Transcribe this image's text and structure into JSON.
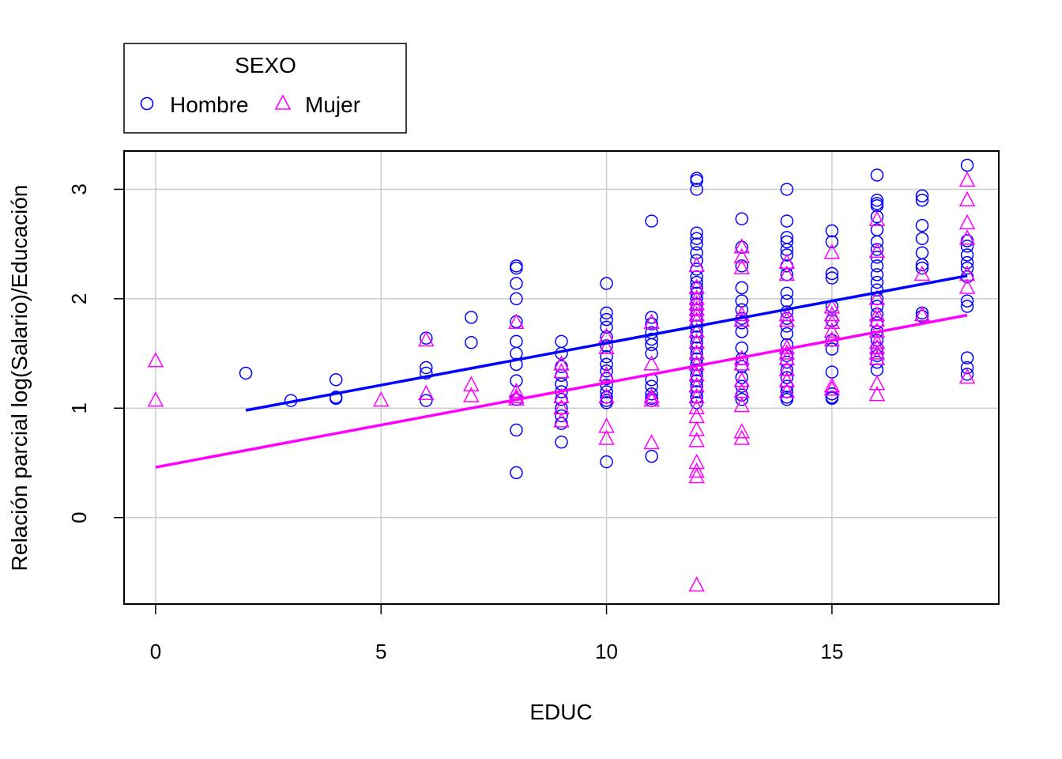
{
  "chart_data": {
    "type": "scatter",
    "title": "",
    "xlabel": "EDUC",
    "ylabel": "Relación parcial log(Salario)/Educación",
    "xlim": [
      -0.7,
      18.7
    ],
    "ylim": [
      -0.79,
      3.35
    ],
    "x_ticks": [
      "0",
      "5",
      "10",
      "15"
    ],
    "y_ticks": [
      "0",
      "1",
      "2",
      "3"
    ],
    "x_tick_values": [
      0,
      5,
      10,
      15
    ],
    "y_tick_values": [
      0,
      1,
      2,
      3
    ],
    "grid": true,
    "legend": {
      "title": "SEXO",
      "position": "top-left, outside plot area",
      "entries": [
        "Hombre",
        "Mujer"
      ]
    },
    "series": [
      {
        "name": "Hombre",
        "color": "#0000FF",
        "marker": "circle",
        "points": [
          [
            2,
            1.32
          ],
          [
            3,
            1.07
          ],
          [
            4,
            1.26
          ],
          [
            4,
            1.1
          ],
          [
            4,
            1.09
          ],
          [
            6,
            1.64
          ],
          [
            6,
            1.37
          ],
          [
            6,
            1.32
          ],
          [
            6,
            1.07
          ],
          [
            7,
            1.83
          ],
          [
            7,
            1.6
          ],
          [
            8,
            2.3
          ],
          [
            8,
            2.28
          ],
          [
            8,
            2.14
          ],
          [
            8,
            2.0
          ],
          [
            8,
            1.79
          ],
          [
            8,
            1.61
          ],
          [
            8,
            1.5
          ],
          [
            8,
            1.4
          ],
          [
            8,
            1.25
          ],
          [
            8,
            1.08
          ],
          [
            8,
            0.8
          ],
          [
            8,
            0.41
          ],
          [
            9,
            1.61
          ],
          [
            9,
            1.5
          ],
          [
            9,
            1.38
          ],
          [
            9,
            1.3
          ],
          [
            9,
            1.22
          ],
          [
            9,
            1.15
          ],
          [
            9,
            1.08
          ],
          [
            9,
            1.0
          ],
          [
            9,
            0.93
          ],
          [
            9,
            0.86
          ],
          [
            9,
            0.69
          ],
          [
            10,
            2.14
          ],
          [
            10,
            1.87
          ],
          [
            10,
            1.81
          ],
          [
            10,
            1.74
          ],
          [
            10,
            1.65
          ],
          [
            10,
            1.57
          ],
          [
            10,
            1.47
          ],
          [
            10,
            1.4
          ],
          [
            10,
            1.34
          ],
          [
            10,
            1.27
          ],
          [
            10,
            1.21
          ],
          [
            10,
            1.15
          ],
          [
            10,
            1.1
          ],
          [
            10,
            1.07
          ],
          [
            10,
            1.05
          ],
          [
            10,
            0.51
          ],
          [
            11,
            2.71
          ],
          [
            11,
            1.83
          ],
          [
            11,
            1.77
          ],
          [
            11,
            1.69
          ],
          [
            11,
            1.63
          ],
          [
            11,
            1.58
          ],
          [
            11,
            1.5
          ],
          [
            11,
            1.26
          ],
          [
            11,
            1.2
          ],
          [
            11,
            1.13
          ],
          [
            11,
            1.09
          ],
          [
            11,
            1.07
          ],
          [
            11,
            0.56
          ],
          [
            12,
            3.1
          ],
          [
            12,
            3.08
          ],
          [
            12,
            3.0
          ],
          [
            12,
            2.6
          ],
          [
            12,
            2.55
          ],
          [
            12,
            2.5
          ],
          [
            12,
            2.42
          ],
          [
            12,
            2.35
          ],
          [
            12,
            2.27
          ],
          [
            12,
            2.2
          ],
          [
            12,
            2.15
          ],
          [
            12,
            2.1
          ],
          [
            12,
            2.05
          ],
          [
            12,
            2.0
          ],
          [
            12,
            1.95
          ],
          [
            12,
            1.9
          ],
          [
            12,
            1.85
          ],
          [
            12,
            1.8
          ],
          [
            12,
            1.75
          ],
          [
            12,
            1.7
          ],
          [
            12,
            1.65
          ],
          [
            12,
            1.6
          ],
          [
            12,
            1.55
          ],
          [
            12,
            1.5
          ],
          [
            12,
            1.45
          ],
          [
            12,
            1.4
          ],
          [
            12,
            1.35
          ],
          [
            12,
            1.3
          ],
          [
            12,
            1.25
          ],
          [
            12,
            1.2
          ],
          [
            12,
            1.15
          ],
          [
            12,
            1.1
          ],
          [
            12,
            1.05
          ],
          [
            13,
            2.73
          ],
          [
            13,
            2.47
          ],
          [
            13,
            2.3
          ],
          [
            13,
            2.1
          ],
          [
            13,
            1.98
          ],
          [
            13,
            1.9
          ],
          [
            13,
            1.82
          ],
          [
            13,
            1.78
          ],
          [
            13,
            1.7
          ],
          [
            13,
            1.55
          ],
          [
            13,
            1.45
          ],
          [
            13,
            1.38
          ],
          [
            13,
            1.28
          ],
          [
            13,
            1.2
          ],
          [
            13,
            1.12
          ],
          [
            13,
            1.08
          ],
          [
            14,
            3.0
          ],
          [
            14,
            2.71
          ],
          [
            14,
            2.56
          ],
          [
            14,
            2.52
          ],
          [
            14,
            2.45
          ],
          [
            14,
            2.4
          ],
          [
            14,
            2.3
          ],
          [
            14,
            2.22
          ],
          [
            14,
            2.05
          ],
          [
            14,
            1.98
          ],
          [
            14,
            1.88
          ],
          [
            14,
            1.82
          ],
          [
            14,
            1.75
          ],
          [
            14,
            1.68
          ],
          [
            14,
            1.58
          ],
          [
            14,
            1.48
          ],
          [
            14,
            1.42
          ],
          [
            14,
            1.35
          ],
          [
            14,
            1.28
          ],
          [
            14,
            1.2
          ],
          [
            14,
            1.15
          ],
          [
            14,
            1.1
          ],
          [
            14,
            1.08
          ],
          [
            15,
            2.62
          ],
          [
            15,
            2.52
          ],
          [
            15,
            2.23
          ],
          [
            15,
            2.19
          ],
          [
            15,
            1.93
          ],
          [
            15,
            1.8
          ],
          [
            15,
            1.62
          ],
          [
            15,
            1.54
          ],
          [
            15,
            1.33
          ],
          [
            15,
            1.13
          ],
          [
            15,
            1.1
          ],
          [
            15,
            1.09
          ],
          [
            16,
            3.13
          ],
          [
            16,
            2.9
          ],
          [
            16,
            2.87
          ],
          [
            16,
            2.85
          ],
          [
            16,
            2.75
          ],
          [
            16,
            2.63
          ],
          [
            16,
            2.52
          ],
          [
            16,
            2.45
          ],
          [
            16,
            2.38
          ],
          [
            16,
            2.3
          ],
          [
            16,
            2.22
          ],
          [
            16,
            2.15
          ],
          [
            16,
            2.08
          ],
          [
            16,
            2.0
          ],
          [
            16,
            1.93
          ],
          [
            16,
            1.86
          ],
          [
            16,
            1.78
          ],
          [
            16,
            1.7
          ],
          [
            16,
            1.62
          ],
          [
            16,
            1.55
          ],
          [
            16,
            1.48
          ],
          [
            16,
            1.42
          ],
          [
            16,
            1.35
          ],
          [
            17,
            2.94
          ],
          [
            17,
            2.9
          ],
          [
            17,
            2.67
          ],
          [
            17,
            2.55
          ],
          [
            17,
            2.42
          ],
          [
            17,
            2.31
          ],
          [
            17,
            2.28
          ],
          [
            17,
            1.87
          ],
          [
            17,
            1.84
          ],
          [
            18,
            3.22
          ],
          [
            18,
            2.53
          ],
          [
            18,
            2.48
          ],
          [
            18,
            2.4
          ],
          [
            18,
            2.33
          ],
          [
            18,
            2.28
          ],
          [
            18,
            2.2
          ],
          [
            18,
            1.98
          ],
          [
            18,
            1.93
          ],
          [
            18,
            1.46
          ],
          [
            18,
            1.37
          ],
          [
            18,
            1.31
          ]
        ]
      },
      {
        "name": "Mujer",
        "color": "#FF00FF",
        "marker": "triangle",
        "points": [
          [
            0,
            1.43
          ],
          [
            0,
            1.07
          ],
          [
            5,
            1.07
          ],
          [
            6,
            1.62
          ],
          [
            6,
            1.13
          ],
          [
            7,
            1.21
          ],
          [
            7,
            1.11
          ],
          [
            8,
            1.78
          ],
          [
            8,
            1.15
          ],
          [
            8,
            1.1
          ],
          [
            8,
            1.08
          ],
          [
            9,
            1.4
          ],
          [
            9,
            1.33
          ],
          [
            9,
            1.1
          ],
          [
            9,
            1.0
          ],
          [
            9,
            0.88
          ],
          [
            10,
            1.65
          ],
          [
            10,
            1.55
          ],
          [
            10,
            1.3
          ],
          [
            10,
            1.1
          ],
          [
            10,
            0.83
          ],
          [
            10,
            0.72
          ],
          [
            11,
            1.78
          ],
          [
            11,
            1.4
          ],
          [
            11,
            1.1
          ],
          [
            11,
            1.07
          ],
          [
            11,
            0.68
          ],
          [
            12,
            2.3
          ],
          [
            12,
            2.1
          ],
          [
            12,
            2.0
          ],
          [
            12,
            1.95
          ],
          [
            12,
            1.9
          ],
          [
            12,
            1.85
          ],
          [
            12,
            1.8
          ],
          [
            12,
            1.7
          ],
          [
            12,
            1.6
          ],
          [
            12,
            1.5
          ],
          [
            12,
            1.4
          ],
          [
            12,
            1.3
          ],
          [
            12,
            1.2
          ],
          [
            12,
            1.1
          ],
          [
            12,
            1.0
          ],
          [
            12,
            0.92
          ],
          [
            12,
            0.8
          ],
          [
            12,
            0.7
          ],
          [
            12,
            0.5
          ],
          [
            12,
            0.42
          ],
          [
            12,
            0.37
          ],
          [
            12,
            -0.62
          ],
          [
            13,
            2.47
          ],
          [
            13,
            2.38
          ],
          [
            13,
            2.28
          ],
          [
            13,
            1.85
          ],
          [
            13,
            1.8
          ],
          [
            13,
            1.45
          ],
          [
            13,
            1.4
          ],
          [
            13,
            1.25
          ],
          [
            13,
            1.15
          ],
          [
            13,
            1.02
          ],
          [
            13,
            0.78
          ],
          [
            13,
            0.72
          ],
          [
            14,
            2.33
          ],
          [
            14,
            2.22
          ],
          [
            14,
            1.85
          ],
          [
            14,
            1.8
          ],
          [
            14,
            1.55
          ],
          [
            14,
            1.5
          ],
          [
            14,
            1.45
          ],
          [
            14,
            1.35
          ],
          [
            14,
            1.25
          ],
          [
            14,
            1.15
          ],
          [
            15,
            2.42
          ],
          [
            15,
            1.92
          ],
          [
            15,
            1.85
          ],
          [
            15,
            1.78
          ],
          [
            15,
            1.7
          ],
          [
            15,
            1.62
          ],
          [
            15,
            1.2
          ],
          [
            15,
            1.17
          ],
          [
            16,
            2.72
          ],
          [
            16,
            2.43
          ],
          [
            16,
            2.0
          ],
          [
            16,
            1.85
          ],
          [
            16,
            1.8
          ],
          [
            16,
            1.7
          ],
          [
            16,
            1.6
          ],
          [
            16,
            1.55
          ],
          [
            16,
            1.5
          ],
          [
            16,
            1.45
          ],
          [
            16,
            1.22
          ],
          [
            16,
            1.12
          ],
          [
            17,
            2.22
          ],
          [
            17,
            1.85
          ],
          [
            18,
            3.08
          ],
          [
            18,
            2.9
          ],
          [
            18,
            2.69
          ],
          [
            18,
            2.55
          ],
          [
            18,
            2.22
          ],
          [
            18,
            2.1
          ],
          [
            18,
            1.28
          ]
        ]
      }
    ],
    "fit_lines": [
      {
        "series": "Hombre",
        "color": "#0000FF",
        "x": [
          2,
          18
        ],
        "y": [
          0.98,
          2.21
        ]
      },
      {
        "series": "Mujer",
        "color": "#FF00FF",
        "x": [
          0,
          18
        ],
        "y": [
          0.46,
          1.85
        ]
      }
    ]
  }
}
